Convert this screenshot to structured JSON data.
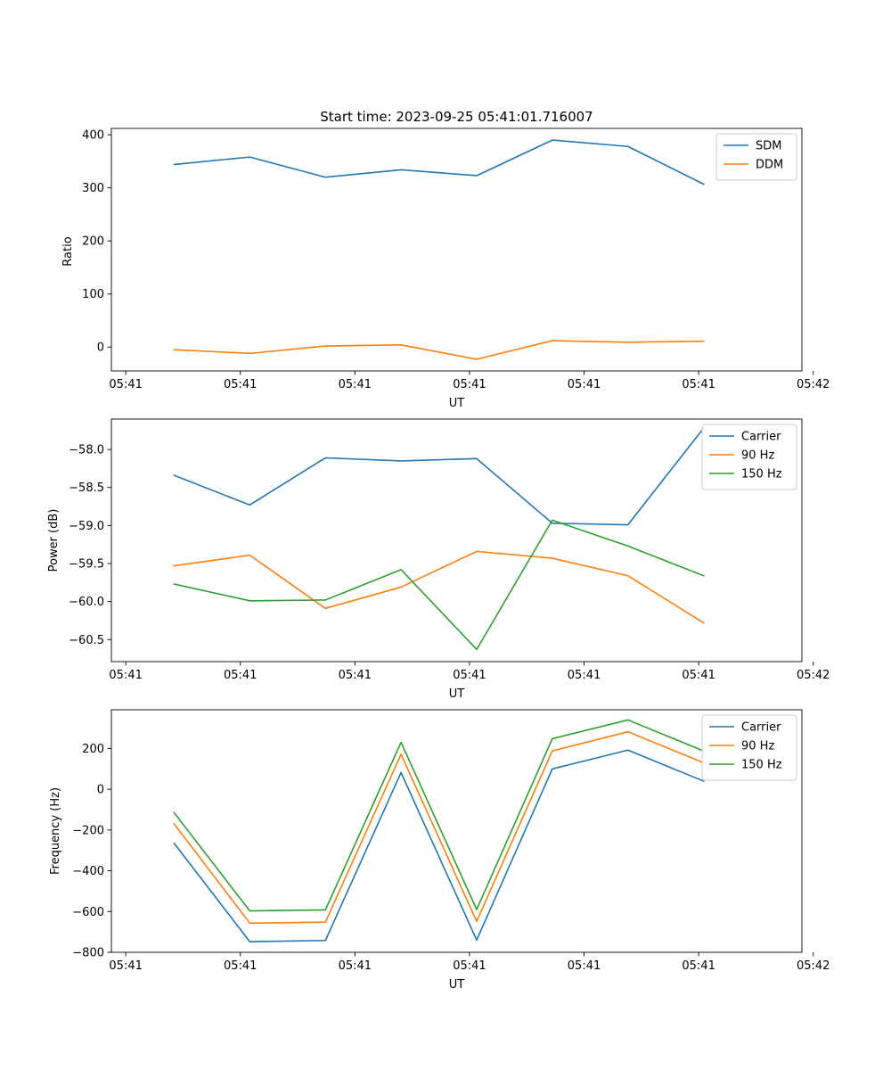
{
  "figure_title": "Start time: 2023-09-25 05:41:01.716007",
  "colors": {
    "blue": "#1f77b4",
    "orange": "#ff7f0e",
    "green": "#2ca02c"
  },
  "chart_data": [
    {
      "type": "line",
      "title": "Start time: 2023-09-25 05:41:01.716007",
      "xlabel": "UT",
      "ylabel": "Ratio",
      "x": [
        1,
        2,
        3,
        4,
        5,
        6,
        7,
        8
      ],
      "xlim": [
        0.17,
        9.3
      ],
      "x_ticks": [
        0.36,
        1.875,
        3.39,
        4.905,
        6.42,
        7.935,
        9.45
      ],
      "x_tick_labels": [
        "05:41",
        "05:41",
        "05:41",
        "05:41",
        "05:41",
        "05:41",
        "05:42"
      ],
      "ylim": [
        -45,
        412
      ],
      "y_ticks": [
        0,
        100,
        200,
        300,
        400
      ],
      "y_tick_labels": [
        "0",
        "100",
        "200",
        "300",
        "400"
      ],
      "legend_position": "top-right",
      "series": [
        {
          "name": "SDM",
          "color": "#1f77b4",
          "values": [
            344,
            358,
            320,
            334,
            323,
            390,
            378,
            307
          ]
        },
        {
          "name": "DDM",
          "color": "#ff7f0e",
          "values": [
            -5,
            -12,
            2,
            4,
            -23,
            12,
            9,
            11
          ]
        }
      ]
    },
    {
      "type": "line",
      "title": "",
      "xlabel": "UT",
      "ylabel": "Power (dB)",
      "x": [
        1,
        2,
        3,
        4,
        5,
        6,
        7,
        8
      ],
      "xlim": [
        0.17,
        9.3
      ],
      "x_ticks": [
        0.36,
        1.875,
        3.39,
        4.905,
        6.42,
        7.935,
        9.45
      ],
      "x_tick_labels": [
        "05:41",
        "05:41",
        "05:41",
        "05:41",
        "05:41",
        "05:41",
        "05:42"
      ],
      "ylim": [
        -60.79,
        -57.6
      ],
      "y_ticks": [
        -60.5,
        -60.0,
        -59.5,
        -59.0,
        -58.5,
        -58.0
      ],
      "y_tick_labels": [
        "−60.5",
        "−60.0",
        "−59.5",
        "−59.0",
        "−58.5",
        "−58.0"
      ],
      "legend_position": "top-right",
      "series": [
        {
          "name": "Carrier",
          "color": "#1f77b4",
          "values": [
            -58.34,
            -58.73,
            -58.11,
            -58.15,
            -58.12,
            -58.97,
            -58.99,
            -57.72
          ]
        },
        {
          "name": "90 Hz",
          "color": "#ff7f0e",
          "values": [
            -59.53,
            -59.39,
            -60.09,
            -59.81,
            -59.34,
            -59.43,
            -59.66,
            -60.28
          ]
        },
        {
          "name": "150 Hz",
          "color": "#2ca02c",
          "values": [
            -59.77,
            -59.99,
            -59.98,
            -59.58,
            -60.63,
            -58.93,
            -59.27,
            -59.66
          ]
        }
      ]
    },
    {
      "type": "line",
      "title": "",
      "xlabel": "UT",
      "ylabel": "Frequency (Hz)",
      "x": [
        1,
        2,
        3,
        4,
        5,
        6,
        7,
        8
      ],
      "xlim": [
        0.17,
        9.3
      ],
      "x_ticks": [
        0.36,
        1.875,
        3.39,
        4.905,
        6.42,
        7.935,
        9.45
      ],
      "x_tick_labels": [
        "05:41",
        "05:41",
        "05:41",
        "05:41",
        "05:41",
        "05:41",
        "05:42"
      ],
      "ylim": [
        -800,
        390
      ],
      "y_ticks": [
        -800,
        -600,
        -400,
        -200,
        0,
        200
      ],
      "y_tick_labels": [
        "−800",
        "−600",
        "−400",
        "−200",
        "0",
        "200"
      ],
      "legend_position": "top-right",
      "series": [
        {
          "name": "Carrier",
          "color": "#1f77b4",
          "values": [
            -265,
            -748,
            -742,
            82,
            -740,
            100,
            192,
            40
          ]
        },
        {
          "name": "90 Hz",
          "color": "#ff7f0e",
          "values": [
            -170,
            -657,
            -652,
            172,
            -648,
            188,
            282,
            130
          ]
        },
        {
          "name": "150 Hz",
          "color": "#2ca02c",
          "values": [
            -115,
            -597,
            -592,
            230,
            -590,
            248,
            340,
            188
          ]
        }
      ]
    }
  ]
}
